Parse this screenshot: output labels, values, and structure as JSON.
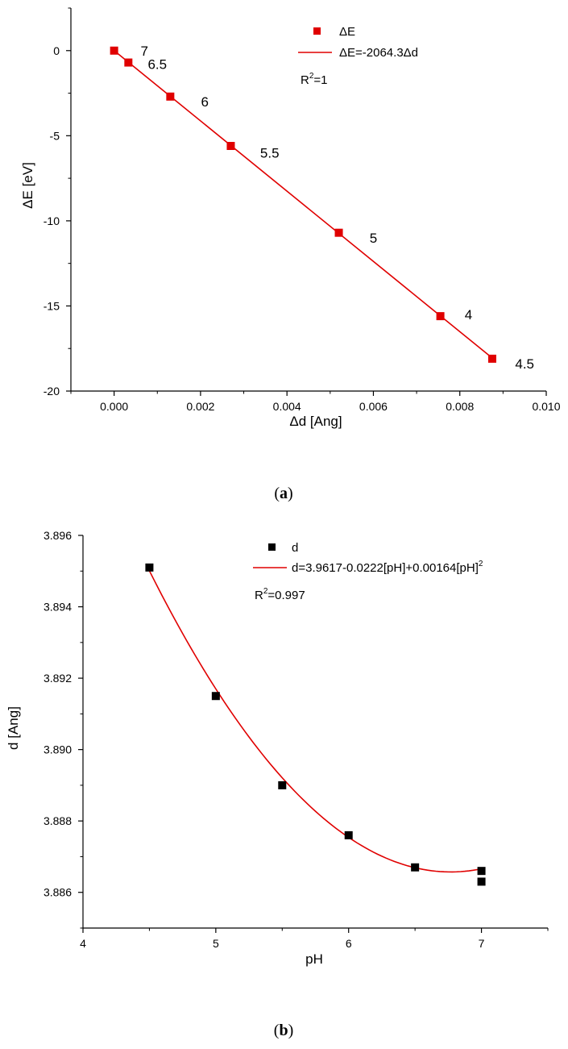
{
  "chart_data": [
    {
      "type": "scatter",
      "caption_open": "(",
      "caption_letter": "a",
      "caption_close": ")",
      "xlabel": "Δd [Ang]",
      "ylabel": "ΔE [eV]",
      "xlim": [
        -0.001,
        0.01
      ],
      "ylim": [
        -20,
        2.5
      ],
      "xticks": [
        0.0,
        0.002,
        0.004,
        0.006,
        0.008,
        0.01
      ],
      "xtick_labels": [
        "0.000",
        "0.002",
        "0.004",
        "0.006",
        "0.008",
        "0.010"
      ],
      "yticks": [
        0,
        -5,
        -10,
        -15,
        -20
      ],
      "ytick_labels": [
        "0",
        "-5",
        "-10",
        "-15",
        "-20"
      ],
      "series": [
        {
          "name": "ΔE",
          "color": "#e00000",
          "marker": "square",
          "x": [
            0.0,
            0.00033,
            0.0013,
            0.0027,
            0.0052,
            0.00755,
            0.00875
          ],
          "y": [
            0.0,
            -0.7,
            -2.7,
            -5.6,
            -10.7,
            -15.6,
            -18.1
          ]
        },
        {
          "name": "ΔE=-2064.3Δd",
          "color": "#e00000",
          "kind": "line",
          "x": [
            0.0,
            0.00875
          ],
          "y": [
            0.0,
            -18.06
          ]
        }
      ],
      "annotations": [
        {
          "text": "7",
          "x": 0.0007,
          "y": 0.0
        },
        {
          "text": "6.5",
          "x": 0.001,
          "y": -0.8
        },
        {
          "text": "6",
          "x": 0.0021,
          "y": -3.0
        },
        {
          "text": "5.5",
          "x": 0.0036,
          "y": -6.0
        },
        {
          "text": "5",
          "x": 0.006,
          "y": -11.0
        },
        {
          "text": "4",
          "x": 0.0082,
          "y": -15.5
        },
        {
          "text": "4.5",
          "x": 0.0095,
          "y": -18.4
        }
      ],
      "legend": {
        "placement": "top-right",
        "marker_label": "ΔE",
        "line_label": "ΔE=-2064.3Δd",
        "r2_prefix": "R",
        "r2_sup": "2",
        "r2_value": "=1"
      }
    },
    {
      "type": "scatter",
      "caption_open": "(",
      "caption_letter": "b",
      "caption_close": ")",
      "xlabel": "pH",
      "ylabel": "d [Ang]",
      "xlim": [
        4,
        7.5
      ],
      "ylim": [
        3.885,
        3.896
      ],
      "xticks": [
        4,
        5,
        6,
        7
      ],
      "xtick_labels": [
        "4",
        "5",
        "6",
        "7"
      ],
      "yticks": [
        3.886,
        3.888,
        3.89,
        3.892,
        3.894,
        3.896
      ],
      "ytick_labels": [
        "3.886",
        "3.888",
        "3.890",
        "3.892",
        "3.894",
        "3.896"
      ],
      "series": [
        {
          "name": "d",
          "color": "#000000",
          "marker": "square",
          "x": [
            4.5,
            5.0,
            5.5,
            6.0,
            6.5,
            7.0,
            7.0
          ],
          "y": [
            3.8951,
            3.8915,
            3.889,
            3.8876,
            3.8867,
            3.8866,
            3.8863
          ]
        },
        {
          "name": "d=3.9617-0.0222[pH]+0.00164[pH]2",
          "color": "#e00000",
          "kind": "curve",
          "fit": [
            3.9617,
            -0.0222,
            0.00164
          ],
          "x_range": [
            4.5,
            7.0
          ]
        }
      ],
      "legend": {
        "placement": "top-right",
        "marker_label": "d",
        "line_label_main": "d=3.9617-0.0222[pH]+0.00164[pH]",
        "line_label_sup": "2",
        "r2_prefix": "R",
        "r2_sup": "2",
        "r2_value": "=0.997"
      }
    }
  ]
}
